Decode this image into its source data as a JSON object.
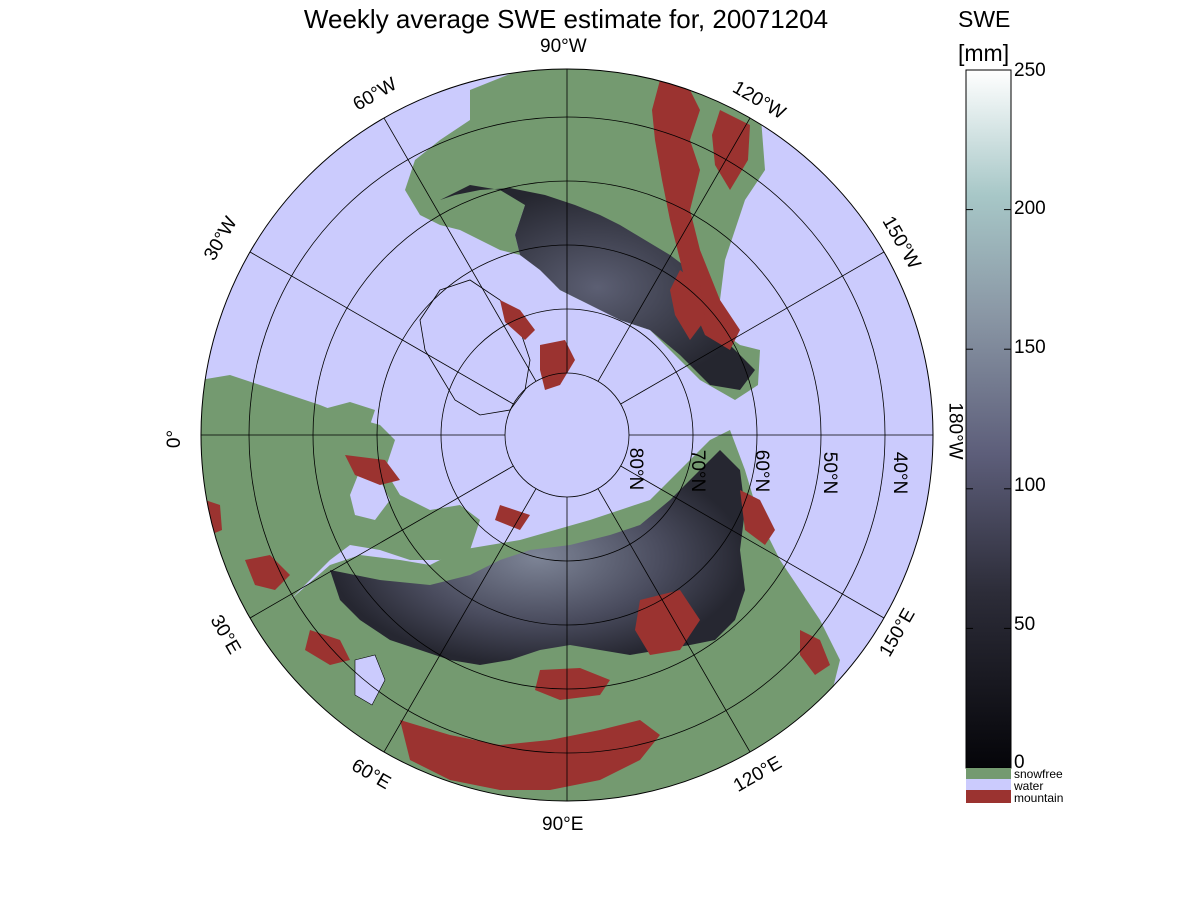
{
  "title": "Weekly average SWE estimate for, 20071204",
  "colorbar": {
    "title_line1": "SWE",
    "title_line2": "[mm]",
    "ticks": [
      "0",
      "50",
      "100",
      "150",
      "200",
      "250"
    ],
    "range": [
      0,
      250
    ],
    "colors": {
      "low": "#050509",
      "mid": "#5d5e7a",
      "high": "#a7c7c7",
      "top": "#ffffff"
    }
  },
  "categories": [
    {
      "label": "snowfree",
      "color": "#749a70"
    },
    {
      "label": "water",
      "color": "#cbcbfd"
    },
    {
      "label": "mountain",
      "color": "#9b3330"
    }
  ],
  "map": {
    "projection": "north polar stereographic",
    "longitude_labels": {
      "top": "90°W",
      "upper_left": "60°W",
      "upper_right": "120°W",
      "left_upper": "30°W",
      "right_upper": "150°W",
      "left": "0°",
      "right": "180°W",
      "left_lower": "30°E",
      "right_lower": "150°E",
      "bottom_left": "60°E",
      "bottom_right": "120°E",
      "bottom": "90°E"
    },
    "latitude_labels": [
      "80°N",
      "70°N",
      "60°N",
      "50°N",
      "40°N"
    ],
    "colors": {
      "water": "#cbcbfd",
      "land": "#749a70",
      "mountain": "#9b3330",
      "snow": "#3a3b4c",
      "deep_snow": "#7d8496",
      "outline": "#000000"
    }
  }
}
